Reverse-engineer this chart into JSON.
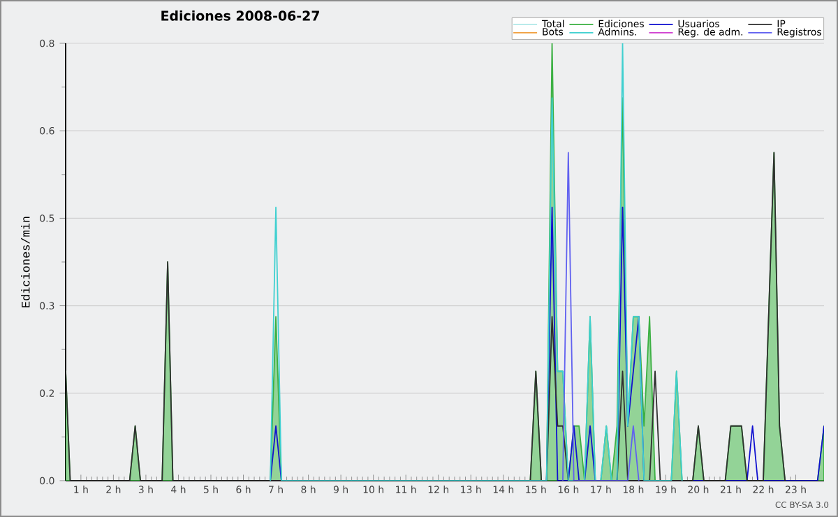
{
  "chart_data": {
    "type": "line",
    "title": "Ediciones  2008-06-27",
    "ylabel": "Ediciones/min",
    "annotations": [
      "CC BY-SA 3.0"
    ],
    "xlim": [
      0.53,
      23.87
    ],
    "ylim": [
      0,
      0.8
    ],
    "xticks": [
      {
        "value": 1,
        "label": "1 h"
      },
      {
        "value": 2,
        "label": "2 h"
      },
      {
        "value": 3,
        "label": "3 h"
      },
      {
        "value": 4,
        "label": "4 h"
      },
      {
        "value": 5,
        "label": "5 h"
      },
      {
        "value": 6,
        "label": "6 h"
      },
      {
        "value": 7,
        "label": "7 h"
      },
      {
        "value": 8,
        "label": "8 h"
      },
      {
        "value": 9,
        "label": "9 h"
      },
      {
        "value": 10,
        "label": "10 h"
      },
      {
        "value": 11,
        "label": "11 h"
      },
      {
        "value": 12,
        "label": "12 h"
      },
      {
        "value": 13,
        "label": "13 h"
      },
      {
        "value": 14,
        "label": "14 h"
      },
      {
        "value": 15,
        "label": "15 h"
      },
      {
        "value": 16,
        "label": "16 h"
      },
      {
        "value": 17,
        "label": "17 h"
      },
      {
        "value": 18,
        "label": "18 h"
      },
      {
        "value": 19,
        "label": "19 h"
      },
      {
        "value": 20,
        "label": "20 h"
      },
      {
        "value": 21,
        "label": "21 h"
      },
      {
        "value": 22,
        "label": "22 h"
      },
      {
        "value": 23,
        "label": "23 h"
      }
    ],
    "yticks": [
      {
        "value": 0,
        "label": "0.0"
      },
      {
        "value": 0.16,
        "label": "0.2"
      },
      {
        "value": 0.32,
        "label": "0.3"
      },
      {
        "value": 0.48,
        "label": "0.5"
      },
      {
        "value": 0.64,
        "label": "0.6"
      },
      {
        "value": 0.8,
        "label": "0.8"
      }
    ],
    "grid": "y",
    "legend": "top right",
    "line_style": "solid",
    "series": [
      {
        "name": "Total",
        "color": "#b0e8e8"
      },
      {
        "name": "Ediciones",
        "type": "area",
        "color": "#3cb043",
        "x": [
          0.53,
          0.67,
          2.5,
          2.67,
          2.83,
          3.5,
          3.67,
          3.83,
          6.83,
          7,
          7.17,
          14.83,
          15,
          15.17,
          15.33,
          15.5,
          15.67,
          15.83,
          16,
          16.17,
          16.33,
          16.5,
          16.67,
          16.83,
          17,
          17.17,
          17.33,
          17.5,
          17.67,
          17.83,
          18,
          18.17,
          18.33,
          18.5,
          18.67,
          19.17,
          19.33,
          19.5,
          19.83,
          20,
          20.17,
          20.83,
          21,
          21.33,
          21.5,
          22,
          22.33,
          22.5,
          22.67,
          23.67,
          23.87
        ],
        "values": [
          0.2,
          0,
          0,
          0.1,
          0,
          0,
          0.4,
          0,
          0,
          0.3,
          0,
          0,
          0.2,
          0,
          0,
          0.8,
          0.2,
          0.2,
          0,
          0.1,
          0.1,
          0,
          0.3,
          0,
          0,
          0.1,
          0,
          0.1,
          0.7,
          0.1,
          0.3,
          0.3,
          0.1,
          0.3,
          0,
          0,
          0.2,
          0,
          0,
          0.1,
          0,
          0,
          0.1,
          0.1,
          0,
          0,
          0.6,
          0.1,
          0,
          0,
          0.1
        ]
      },
      {
        "name": "Usuarios",
        "color": "#1010d0",
        "x": [
          6.83,
          7,
          7.17,
          15.33,
          15.5,
          15.67,
          16,
          16.17,
          16.33,
          16.5,
          16.67,
          16.83,
          17.5,
          17.67,
          17.83,
          18.17,
          18.33,
          21.5,
          21.67,
          21.83,
          23.67,
          23.87
        ],
        "values": [
          0,
          0.1,
          0,
          0,
          0.5,
          0,
          0,
          0.1,
          0,
          0,
          0.1,
          0,
          0,
          0.5,
          0.1,
          0.3,
          0,
          0,
          0.1,
          0,
          0,
          0.1
        ]
      },
      {
        "name": "IP",
        "color": "#303030",
        "x": [
          0.53,
          0.67,
          2.5,
          2.67,
          2.83,
          3.5,
          3.67,
          3.83,
          14.83,
          15,
          15.17,
          15.33,
          15.5,
          15.67,
          15.83,
          16,
          17.5,
          17.67,
          17.83,
          18.5,
          18.67,
          18.83,
          19.83,
          20,
          20.17,
          20.83,
          21,
          21.33,
          21.5,
          22,
          22.33,
          22.5,
          22.67
        ],
        "values": [
          0.2,
          0,
          0,
          0.1,
          0,
          0,
          0.4,
          0,
          0,
          0.2,
          0,
          0,
          0.3,
          0.1,
          0.1,
          0,
          0,
          0.2,
          0,
          0,
          0.2,
          0,
          0,
          0.1,
          0,
          0,
          0.1,
          0.1,
          0,
          0,
          0.6,
          0.1,
          0
        ]
      },
      {
        "name": "Bots",
        "color": "#f0a040"
      },
      {
        "name": "Admins.",
        "color": "#40d0d0",
        "x": [
          6.83,
          7,
          7.17,
          15.33,
          15.5,
          15.67,
          15.83,
          16,
          16.5,
          16.67,
          16.83,
          17,
          17.17,
          17.33,
          17.5,
          17.67,
          17.83,
          18,
          18.17,
          18.33,
          19.17,
          19.33,
          19.5
        ],
        "values": [
          0,
          0.5,
          0,
          0,
          0.7,
          0.2,
          0.2,
          0,
          0,
          0.3,
          0,
          0,
          0.1,
          0,
          0,
          0.8,
          0.1,
          0.3,
          0.3,
          0,
          0,
          0.2,
          0
        ]
      },
      {
        "name": "Reg. de adm.",
        "color": "#d040d0"
      },
      {
        "name": "Registros",
        "color": "#6060f0",
        "x": [
          15.83,
          16,
          16.17,
          17.83,
          18,
          18.17
        ],
        "values": [
          0,
          0.6,
          0,
          0,
          0.1,
          0
        ]
      }
    ]
  }
}
